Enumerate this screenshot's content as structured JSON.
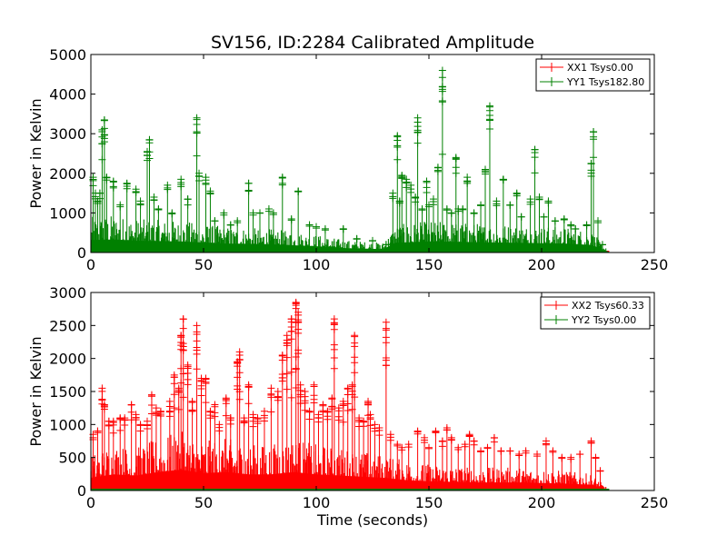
{
  "figure": {
    "title": "SV156, ID:2284 Calibrated Amplitude"
  },
  "colors": {
    "xx": "#ff0000",
    "yy": "#008000"
  },
  "chart_data": [
    {
      "type": "line",
      "subplot": "top",
      "title": "SV156, ID:2284 Calibrated Amplitude",
      "xlabel": "",
      "ylabel": "Power in Kelvin",
      "xlim": [
        0,
        250
      ],
      "ylim": [
        0,
        5000
      ],
      "xticks": [
        0,
        50,
        100,
        150,
        200,
        250
      ],
      "yticks": [
        0,
        1000,
        2000,
        3000,
        4000,
        5000
      ],
      "legend_loc": "upper right",
      "grid": false,
      "series": [
        {
          "name": "XX1 Tsys0.00",
          "color": "#ff0000",
          "x": [
            0,
            230
          ],
          "y": [
            0,
            0
          ]
        },
        {
          "name": "YY1 Tsys182.80",
          "color": "#008000",
          "style": "dense-noise-with-spikes",
          "baseline_envelope": [
            [
              0,
              900
            ],
            [
              10,
              950
            ],
            [
              20,
              850
            ],
            [
              40,
              800
            ],
            [
              60,
              650
            ],
            [
              80,
              600
            ],
            [
              100,
              450
            ],
            [
              115,
              300
            ],
            [
              130,
              250
            ],
            [
              135,
              700
            ],
            [
              150,
              800
            ],
            [
              170,
              750
            ],
            [
              190,
              700
            ],
            [
              210,
              650
            ],
            [
              222,
              550
            ],
            [
              228,
              150
            ],
            [
              230,
              0
            ]
          ],
          "spikes": [
            [
              1,
              1900
            ],
            [
              2,
              1500
            ],
            [
              3,
              1300
            ],
            [
              4,
              1500
            ],
            [
              5,
              3100
            ],
            [
              6,
              3350
            ],
            [
              7,
              1900
            ],
            [
              10,
              1800
            ],
            [
              13,
              1200
            ],
            [
              16,
              1750
            ],
            [
              20,
              1600
            ],
            [
              22,
              1300
            ],
            [
              25,
              2550
            ],
            [
              26,
              2850
            ],
            [
              28,
              1400
            ],
            [
              30,
              1100
            ],
            [
              34,
              1700
            ],
            [
              36,
              1000
            ],
            [
              40,
              1850
            ],
            [
              43,
              1350
            ],
            [
              47,
              3400
            ],
            [
              48,
              2000
            ],
            [
              51,
              1900
            ],
            [
              53,
              1550
            ],
            [
              55,
              800
            ],
            [
              59,
              1000
            ],
            [
              62,
              700
            ],
            [
              65,
              800
            ],
            [
              70,
              1750
            ],
            [
              72,
              1000
            ],
            [
              75,
              1000
            ],
            [
              79,
              1100
            ],
            [
              81,
              1000
            ],
            [
              85,
              1900
            ],
            [
              89,
              850
            ],
            [
              92,
              1550
            ],
            [
              97,
              700
            ],
            [
              100,
              650
            ],
            [
              104,
              600
            ],
            [
              112,
              600
            ],
            [
              118,
              350
            ],
            [
              125,
              300
            ],
            [
              131,
              200
            ],
            [
              134,
              1500
            ],
            [
              136,
              2950
            ],
            [
              137,
              1300
            ],
            [
              138,
              1950
            ],
            [
              140,
              1850
            ],
            [
              142,
              1700
            ],
            [
              144,
              1400
            ],
            [
              145,
              3400
            ],
            [
              147,
              1100
            ],
            [
              149,
              1800
            ],
            [
              150,
              1200
            ],
            [
              152,
              1350
            ],
            [
              154,
              2150
            ],
            [
              156,
              4600
            ],
            [
              158,
              1100
            ],
            [
              160,
              1000
            ],
            [
              162,
              2400
            ],
            [
              163,
              1100
            ],
            [
              165,
              1100
            ],
            [
              167,
              1900
            ],
            [
              170,
              1000
            ],
            [
              173,
              1200
            ],
            [
              175,
              2100
            ],
            [
              177,
              3700
            ],
            [
              180,
              1300
            ],
            [
              183,
              1850
            ],
            [
              186,
              1200
            ],
            [
              189,
              1500
            ],
            [
              191,
              900
            ],
            [
              195,
              1350
            ],
            [
              197,
              2600
            ],
            [
              199,
              1400
            ],
            [
              201,
              900
            ],
            [
              203,
              1300
            ],
            [
              206,
              800
            ],
            [
              210,
              850
            ],
            [
              213,
              700
            ],
            [
              215,
              600
            ],
            [
              220,
              700
            ],
            [
              222,
              2250
            ],
            [
              223,
              3050
            ],
            [
              225,
              800
            ],
            [
              227,
              200
            ]
          ]
        }
      ]
    },
    {
      "type": "line",
      "subplot": "bottom",
      "title": "",
      "xlabel": "Time (seconds)",
      "ylabel": "Power in Kelvin",
      "xlim": [
        0,
        250
      ],
      "ylim": [
        0,
        3000
      ],
      "xticks": [
        0,
        50,
        100,
        150,
        200,
        250
      ],
      "yticks": [
        0,
        500,
        1000,
        1500,
        2000,
        2500,
        3000
      ],
      "legend_loc": "upper right",
      "grid": false,
      "series": [
        {
          "name": "XX2 Tsys60.33",
          "color": "#ff0000",
          "style": "dense-noise-with-spikes",
          "baseline_envelope": [
            [
              0,
              550
            ],
            [
              10,
              700
            ],
            [
              20,
              650
            ],
            [
              30,
              800
            ],
            [
              40,
              900
            ],
            [
              50,
              750
            ],
            [
              60,
              800
            ],
            [
              70,
              700
            ],
            [
              80,
              700
            ],
            [
              90,
              800
            ],
            [
              100,
              700
            ],
            [
              110,
              650
            ],
            [
              120,
              600
            ],
            [
              130,
              550
            ],
            [
              140,
              450
            ],
            [
              150,
              400
            ],
            [
              170,
              350
            ],
            [
              190,
              350
            ],
            [
              210,
              300
            ],
            [
              222,
              250
            ],
            [
              228,
              80
            ],
            [
              230,
              0
            ]
          ],
          "spikes": [
            [
              1,
              850
            ],
            [
              3,
              900
            ],
            [
              5,
              1550
            ],
            [
              6,
              1300
            ],
            [
              8,
              1050
            ],
            [
              10,
              1050
            ],
            [
              13,
              1100
            ],
            [
              15,
              1100
            ],
            [
              18,
              1300
            ],
            [
              20,
              1150
            ],
            [
              22,
              1000
            ],
            [
              25,
              1050
            ],
            [
              27,
              1450
            ],
            [
              29,
              1250
            ],
            [
              31,
              1200
            ],
            [
              35,
              1350
            ],
            [
              37,
              1750
            ],
            [
              39,
              1550
            ],
            [
              40,
              2350
            ],
            [
              41,
              2600
            ],
            [
              43,
              1900
            ],
            [
              45,
              1350
            ],
            [
              47,
              2500
            ],
            [
              49,
              1700
            ],
            [
              51,
              1700
            ],
            [
              53,
              1200
            ],
            [
              55,
              1300
            ],
            [
              57,
              1000
            ],
            [
              60,
              1400
            ],
            [
              62,
              1100
            ],
            [
              65,
              1950
            ],
            [
              66,
              2100
            ],
            [
              68,
              1100
            ],
            [
              70,
              1600
            ],
            [
              72,
              1150
            ],
            [
              74,
              1100
            ],
            [
              77,
              1200
            ],
            [
              80,
              1550
            ],
            [
              83,
              1500
            ],
            [
              85,
              2050
            ],
            [
              87,
              2350
            ],
            [
              89,
              2600
            ],
            [
              91,
              2850
            ],
            [
              92,
              2700
            ],
            [
              93,
              1600
            ],
            [
              95,
              1500
            ],
            [
              97,
              1200
            ],
            [
              99,
              1600
            ],
            [
              101,
              1150
            ],
            [
              103,
              1300
            ],
            [
              105,
              1200
            ],
            [
              107,
              1400
            ],
            [
              108,
              2600
            ],
            [
              110,
              1250
            ],
            [
              112,
              1350
            ],
            [
              114,
              1550
            ],
            [
              116,
              1600
            ],
            [
              117,
              2350
            ],
            [
              119,
              1100
            ],
            [
              121,
              1050
            ],
            [
              123,
              1350
            ],
            [
              124,
              1150
            ],
            [
              126,
              1000
            ],
            [
              128,
              950
            ],
            [
              131,
              2550
            ],
            [
              133,
              850
            ],
            [
              136,
              700
            ],
            [
              138,
              650
            ],
            [
              141,
              700
            ],
            [
              145,
              900
            ],
            [
              148,
              800
            ],
            [
              150,
              650
            ],
            [
              153,
              900
            ],
            [
              156,
              750
            ],
            [
              158,
              950
            ],
            [
              160,
              800
            ],
            [
              163,
              650
            ],
            [
              166,
              700
            ],
            [
              168,
              850
            ],
            [
              170,
              750
            ],
            [
              173,
              600
            ],
            [
              176,
              650
            ],
            [
              179,
              800
            ],
            [
              182,
              600
            ],
            [
              186,
              600
            ],
            [
              190,
              550
            ],
            [
              193,
              600
            ],
            [
              198,
              550
            ],
            [
              202,
              750
            ],
            [
              205,
              600
            ],
            [
              209,
              500
            ],
            [
              213,
              500
            ],
            [
              217,
              550
            ],
            [
              222,
              750
            ],
            [
              224,
              500
            ],
            [
              226,
              300
            ]
          ]
        },
        {
          "name": "YY2 Tsys0.00",
          "color": "#008000",
          "x": [
            0,
            230
          ],
          "y": [
            0,
            0
          ]
        }
      ]
    }
  ]
}
